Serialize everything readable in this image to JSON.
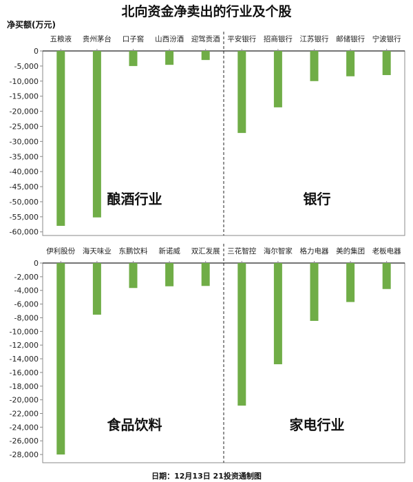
{
  "title": "北向资金净卖出的行业及个股",
  "unit_label": "净买额(万元)",
  "footer": "日期：12月13日 21投资通制图",
  "bar_color": "#70ad47",
  "chart_data": [
    {
      "type": "bar",
      "ylim": [
        -61200,
        0
      ],
      "yticks": [
        0,
        -5000,
        -10000,
        -15000,
        -20000,
        -25000,
        -30000,
        -35000,
        -40000,
        -45000,
        -50000,
        -55000,
        -60000
      ],
      "categories": [
        "五粮液",
        "贵州茅台",
        "口子窖",
        "山西汾酒",
        "迎驾贡酒",
        "平安银行",
        "招商银行",
        "江苏银行",
        "邮储银行",
        "宁波银行"
      ],
      "values": [
        -58000,
        -55200,
        -5000,
        -4600,
        -3000,
        -27200,
        -18700,
        -10000,
        -8400,
        -8000
      ],
      "groups": [
        "酿酒行业",
        "银行"
      ]
    },
    {
      "type": "bar",
      "ylim": [
        -29200,
        0
      ],
      "yticks": [
        0,
        -2000,
        -4000,
        -6000,
        -8000,
        -10000,
        -12000,
        -14000,
        -16000,
        -18000,
        -20000,
        -22000,
        -24000,
        -26000,
        -28000
      ],
      "categories": [
        "伊利股份",
        "海天味业",
        "东鹏饮料",
        "新诺威",
        "双汇发展",
        "三花智控",
        "海尔智家",
        "格力电器",
        "美的集团",
        "老板电器"
      ],
      "values": [
        -28000,
        -7550,
        -3650,
        -3400,
        -3350,
        -20850,
        -14800,
        -8460,
        -5700,
        -3800
      ],
      "groups": [
        "食品饮料",
        "家电行业"
      ]
    }
  ]
}
